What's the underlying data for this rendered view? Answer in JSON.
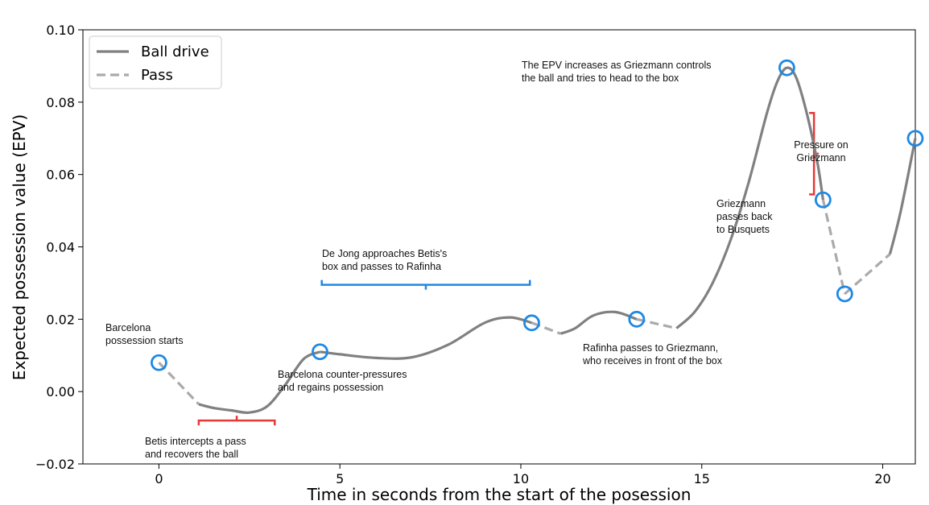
{
  "chart_data": {
    "type": "line",
    "title": "",
    "xlabel": "Time in seconds from the start of the posession",
    "ylabel": "Expected possession value (EPV)",
    "xlim": [
      -2.1,
      20.9
    ],
    "ylim": [
      -0.02,
      0.1
    ],
    "xticks": [
      0,
      5,
      10,
      15,
      20
    ],
    "yticks": [
      -0.02,
      0.0,
      0.02,
      0.04,
      0.06,
      0.08,
      0.1
    ],
    "ytick_labels": [
      "−0.02",
      "0.00",
      "0.02",
      "0.04",
      "0.06",
      "0.08",
      "0.10"
    ],
    "grid": false,
    "legend": {
      "placement": "top-left",
      "entries": [
        {
          "label": "Ball drive",
          "style": "solid",
          "color": "#808080"
        },
        {
          "label": "Pass",
          "style": "dashed",
          "color": "#aaaaaa"
        }
      ]
    },
    "series": [
      {
        "name": "Pass",
        "style": "dashed",
        "color": "#aaaaaa",
        "x": [
          0.0,
          1.1
        ],
        "y": [
          0.008,
          -0.0035
        ]
      },
      {
        "name": "Ball drive",
        "style": "solid",
        "color": "#808080",
        "x": [
          1.1,
          1.5,
          2.0,
          2.5,
          3.0,
          3.5,
          4.0,
          4.45
        ],
        "y": [
          -0.0035,
          -0.0045,
          -0.0052,
          -0.0058,
          -0.004,
          0.002,
          0.009,
          0.011
        ]
      },
      {
        "name": "Ball drive",
        "style": "solid",
        "color": "#808080",
        "x": [
          4.45,
          5.0,
          6.0,
          7.0,
          8.0,
          9.0,
          9.7,
          10.3
        ],
        "y": [
          0.011,
          0.0103,
          0.0093,
          0.0095,
          0.013,
          0.019,
          0.0205,
          0.019
        ]
      },
      {
        "name": "Pass",
        "style": "dashed",
        "color": "#aaaaaa",
        "x": [
          10.3,
          11.1
        ],
        "y": [
          0.019,
          0.016
        ]
      },
      {
        "name": "Ball drive",
        "style": "solid",
        "color": "#808080",
        "x": [
          11.1,
          11.5,
          12.0,
          12.6,
          13.2
        ],
        "y": [
          0.016,
          0.0175,
          0.021,
          0.022,
          0.02
        ]
      },
      {
        "name": "Pass",
        "style": "dashed",
        "color": "#aaaaaa",
        "x": [
          13.2,
          14.3
        ],
        "y": [
          0.02,
          0.0175
        ]
      },
      {
        "name": "Ball drive",
        "style": "solid",
        "color": "#808080",
        "x": [
          14.3,
          14.8,
          15.3,
          15.8,
          16.3,
          16.8,
          17.1,
          17.35,
          17.6,
          17.9,
          18.2,
          18.35
        ],
        "y": [
          0.0175,
          0.022,
          0.03,
          0.042,
          0.058,
          0.077,
          0.086,
          0.0895,
          0.087,
          0.077,
          0.063,
          0.053
        ]
      },
      {
        "name": "Pass",
        "style": "dashed",
        "color": "#aaaaaa",
        "x": [
          18.35,
          18.95
        ],
        "y": [
          0.053,
          0.027
        ]
      },
      {
        "name": "Pass",
        "style": "dashed",
        "color": "#aaaaaa",
        "x": [
          18.95,
          20.2
        ],
        "y": [
          0.027,
          0.038
        ]
      },
      {
        "name": "Ball drive",
        "style": "solid",
        "color": "#808080",
        "x": [
          20.2,
          20.5,
          20.9
        ],
        "y": [
          0.038,
          0.05,
          0.07
        ]
      }
    ],
    "event_markers": {
      "color": "#1e88e5",
      "x": [
        0.0,
        4.45,
        10.3,
        13.2,
        17.35,
        18.35,
        18.95,
        20.9
      ],
      "y": [
        0.008,
        0.011,
        0.019,
        0.02,
        0.0895,
        0.053,
        0.027,
        0.07
      ]
    },
    "brackets": [
      {
        "color": "#e53935",
        "orientation": "horizontal",
        "x_start": 1.1,
        "x_end": 3.2,
        "y": -0.008,
        "tip": "up"
      },
      {
        "color": "#1e88e5",
        "orientation": "horizontal",
        "x_start": 4.5,
        "x_end": 10.25,
        "y": 0.0295,
        "tip": "down"
      },
      {
        "color": "#e53935",
        "orientation": "vertical",
        "y_start": 0.077,
        "y_end": 0.0545,
        "x": 18.1,
        "tip": "right"
      }
    ],
    "annotations": [
      {
        "lines": [
          "Barcelona",
          "possession starts"
        ]
      },
      {
        "lines": [
          "Betis intercepts a pass",
          "and recovers the ball"
        ]
      },
      {
        "lines": [
          "Barcelona counter-pressures",
          "and regains possession"
        ]
      },
      {
        "lines": [
          "De Jong approaches Betis's",
          "box and passes to Rafinha"
        ]
      },
      {
        "lines": [
          "Rafinha passes to Griezmann,",
          "who receives in front of the box"
        ]
      },
      {
        "lines": [
          "The EPV increases as Griezmann controls",
          "the ball and tries to head to the box"
        ]
      },
      {
        "lines": [
          "Pressure on",
          "Griezmann"
        ]
      },
      {
        "lines": [
          "Griezmann",
          "passes back",
          "to Busquets"
        ]
      }
    ]
  }
}
